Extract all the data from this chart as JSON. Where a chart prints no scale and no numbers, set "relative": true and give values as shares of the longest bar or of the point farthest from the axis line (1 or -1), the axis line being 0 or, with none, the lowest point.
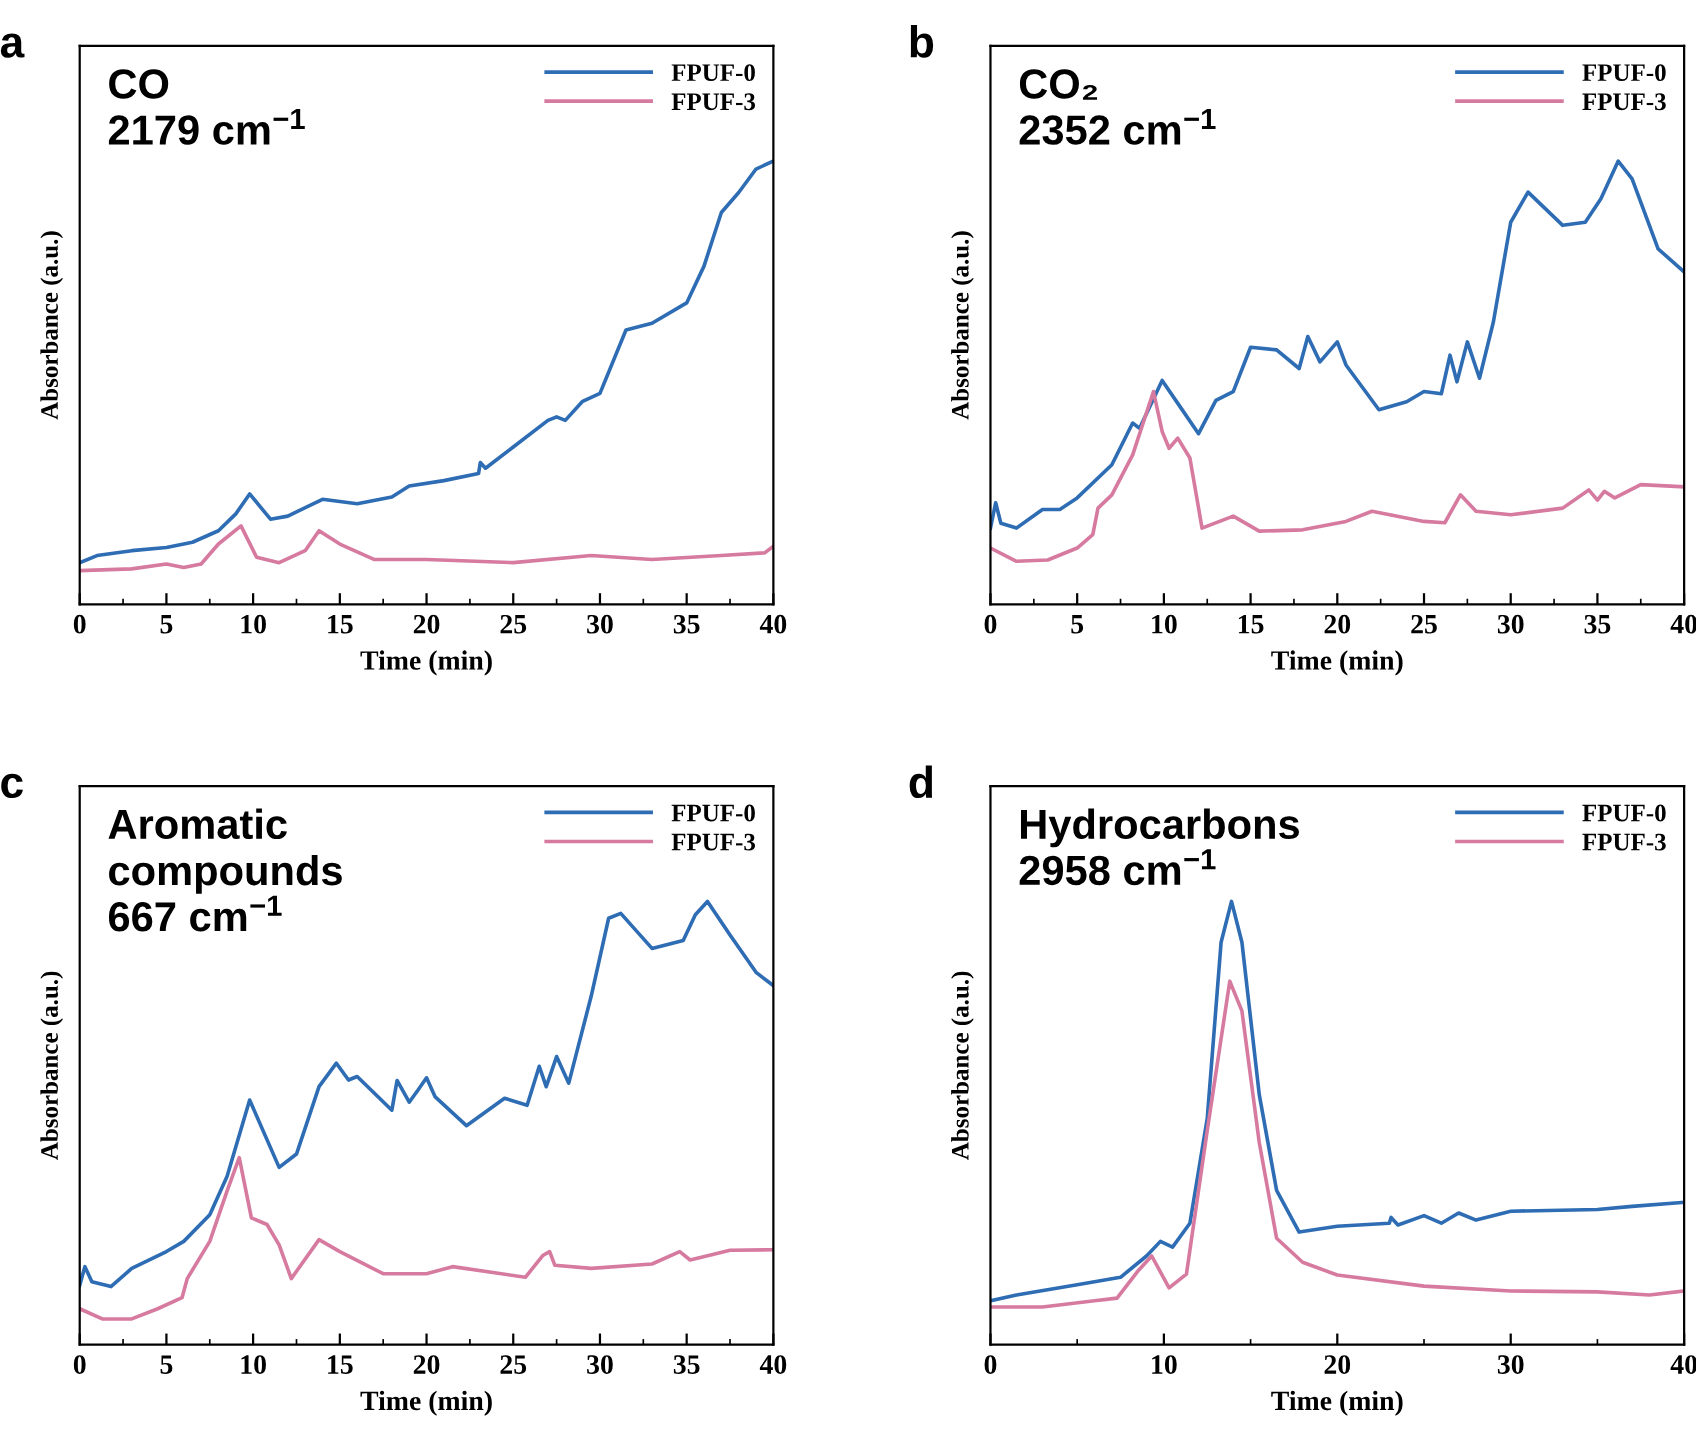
{
  "chart_data": [
    {
      "type": "line",
      "title": "CO\n2179 cm$^{−1}$",
      "xlabel": "Time (min)",
      "ylabel": "Absorbance (a.u.)",
      "annotations": [
        "a"
      ],
      "relative": true,
      "xlim": [
        0,
        40
      ],
      "xticks": [
        0,
        5,
        10,
        15,
        20,
        25,
        30,
        35,
        40
      ],
      "legend": "top right",
      "grid": false,
      "marker": "none",
      "line_style": "solid",
      "series": [
        {
          "name": "FPUF-0",
          "color": "#2e6db4",
          "x": [
            0,
            1,
            3,
            5,
            6.5,
            8,
            9,
            9.8,
            11,
            12,
            14,
            16,
            18,
            19,
            21,
            23,
            23.1,
            23.4,
            25,
            27,
            27.5,
            28,
            29,
            30,
            31.5,
            33,
            35,
            36,
            37,
            38,
            39,
            40
          ],
          "values": [
            0.094,
            0.11,
            0.121,
            0.128,
            0.14,
            0.166,
            0.204,
            0.249,
            0.192,
            0.199,
            0.237,
            0.227,
            0.242,
            0.267,
            0.279,
            0.295,
            0.32,
            0.307,
            0.355,
            0.415,
            0.423,
            0.415,
            0.458,
            0.476,
            0.619,
            0.634,
            0.68,
            0.763,
            0.884,
            0.929,
            0.982,
            1.0
          ]
        },
        {
          "name": "FPUF-3",
          "color": "#d67aa0",
          "x": [
            0,
            3,
            5,
            6,
            7,
            8,
            9.3,
            10.2,
            11.5,
            13,
            13.8,
            15,
            17,
            20,
            25,
            29.5,
            33,
            37,
            39.5,
            40
          ],
          "values": [
            0.076,
            0.08,
            0.091,
            0.083,
            0.091,
            0.136,
            0.177,
            0.106,
            0.094,
            0.121,
            0.166,
            0.136,
            0.101,
            0.101,
            0.094,
            0.11,
            0.101,
            0.11,
            0.116,
            0.131
          ]
        }
      ]
    },
    {
      "type": "line",
      "title": "CO₂\n2352 cm$^{−1}$",
      "xlabel": "Time (min)",
      "ylabel": "Absorbance (a.u.)",
      "annotations": [
        "b"
      ],
      "relative": true,
      "xlim": [
        0,
        40
      ],
      "xticks": [
        0,
        5,
        10,
        15,
        20,
        25,
        30,
        35,
        40
      ],
      "legend": "top right",
      "grid": false,
      "marker": "none",
      "line_style": "solid",
      "series": [
        {
          "name": "FPUF-0",
          "color": "#2e6db4",
          "x": [
            0,
            0.3,
            0.6,
            1.5,
            3,
            4,
            5,
            7,
            8.2,
            8.6,
            9.9,
            11,
            12,
            13,
            14,
            15,
            16.5,
            17.8,
            18.3,
            19,
            20,
            20.5,
            22.4,
            24,
            25,
            26,
            26.5,
            26.9,
            27.5,
            28.2,
            29,
            30,
            31,
            33,
            34.3,
            35.2,
            36.2,
            37,
            38.5,
            40
          ],
          "values": [
            0.172,
            0.229,
            0.183,
            0.172,
            0.214,
            0.214,
            0.24,
            0.315,
            0.409,
            0.397,
            0.505,
            0.442,
            0.385,
            0.46,
            0.48,
            0.58,
            0.574,
            0.532,
            0.604,
            0.547,
            0.592,
            0.54,
            0.439,
            0.457,
            0.48,
            0.475,
            0.562,
            0.502,
            0.592,
            0.51,
            0.637,
            0.862,
            0.93,
            0.855,
            0.862,
            0.915,
            1.0,
            0.96,
            0.802,
            0.75
          ]
        },
        {
          "name": "FPUF-3",
          "color": "#d67aa0",
          "x": [
            0,
            1.5,
            3.3,
            5,
            5.9,
            6.2,
            7,
            8.2,
            9.4,
            9.9,
            10.3,
            10.8,
            11.5,
            12.2,
            14,
            15.5,
            18,
            20.5,
            22,
            25,
            26.2,
            27.1,
            28,
            30,
            33,
            34.5,
            35,
            35.4,
            36,
            37.5,
            40
          ],
          "values": [
            0.127,
            0.097,
            0.1,
            0.127,
            0.157,
            0.217,
            0.247,
            0.337,
            0.48,
            0.39,
            0.352,
            0.375,
            0.33,
            0.172,
            0.199,
            0.165,
            0.168,
            0.187,
            0.21,
            0.187,
            0.184,
            0.247,
            0.21,
            0.202,
            0.217,
            0.258,
            0.235,
            0.255,
            0.24,
            0.27,
            0.265
          ]
        }
      ]
    },
    {
      "type": "line",
      "title": "Aromatic\ncompounds\n667 cm$^{−1}$",
      "xlabel": "Time (min)",
      "ylabel": "Absorbance (a.u.)",
      "annotations": [
        "c"
      ],
      "relative": true,
      "xlim": [
        0,
        40
      ],
      "xticks": [
        0,
        5,
        10,
        15,
        20,
        25,
        30,
        35,
        40
      ],
      "legend": "top right",
      "grid": false,
      "marker": "none",
      "line_style": "solid",
      "series": [
        {
          "name": "FPUF-0",
          "color": "#2e6db4",
          "x": [
            0,
            0.3,
            0.7,
            1.8,
            3,
            5,
            6,
            7.5,
            8.5,
            9.8,
            11.5,
            12.5,
            13.8,
            14.8,
            15.5,
            16,
            18,
            18.3,
            19,
            19.5,
            20,
            20.5,
            22.3,
            24.5,
            25.8,
            26.5,
            26.9,
            27.5,
            28.2,
            29.5,
            30.5,
            31.2,
            33,
            34.8,
            35.5,
            36.2,
            37.5,
            39,
            40
          ],
          "values": [
            0.134,
            0.176,
            0.142,
            0.131,
            0.172,
            0.21,
            0.233,
            0.293,
            0.38,
            0.552,
            0.4,
            0.43,
            0.582,
            0.635,
            0.597,
            0.605,
            0.529,
            0.596,
            0.547,
            0.574,
            0.602,
            0.559,
            0.494,
            0.556,
            0.54,
            0.628,
            0.582,
            0.65,
            0.59,
            0.787,
            0.962,
            0.973,
            0.894,
            0.912,
            0.97,
            1.0,
            0.924,
            0.84,
            0.81
          ]
        },
        {
          "name": "FPUF-3",
          "color": "#d67aa0",
          "x": [
            0,
            1.3,
            3,
            4.5,
            5.9,
            6.2,
            7.5,
            8.5,
            9.2,
            9.9,
            10.8,
            11.5,
            12.2,
            13.8,
            15,
            17.5,
            20,
            21.5,
            25.7,
            26.7,
            27.1,
            27.4,
            29.5,
            33,
            34.6,
            35.2,
            37.5,
            40
          ],
          "values": [
            0.081,
            0.058,
            0.058,
            0.081,
            0.106,
            0.149,
            0.233,
            0.347,
            0.422,
            0.286,
            0.271,
            0.225,
            0.149,
            0.237,
            0.21,
            0.16,
            0.16,
            0.176,
            0.152,
            0.201,
            0.21,
            0.179,
            0.172,
            0.182,
            0.21,
            0.191,
            0.213,
            0.214
          ]
        }
      ]
    },
    {
      "type": "line",
      "title": "Hydrocarbons\n2958 cm$^{−1}$",
      "xlabel": "Time (min)",
      "ylabel": "Absorbance (a.u.)",
      "annotations": [
        "d"
      ],
      "relative": true,
      "xlim": [
        0,
        40
      ],
      "xticks": [
        0,
        10,
        20,
        30,
        40
      ],
      "legend": "top right",
      "grid": false,
      "marker": "none",
      "line_style": "solid",
      "series": [
        {
          "name": "FPUF-0",
          "color": "#2e6db4",
          "x": [
            0,
            1.5,
            5,
            7.5,
            9,
            9.8,
            10.5,
            11.5,
            12.5,
            13.3,
            13.9,
            14.5,
            15.5,
            16.5,
            17.8,
            20,
            23,
            23.1,
            23.5,
            25,
            26,
            27,
            28,
            30,
            35,
            37,
            40
          ],
          "values": [
            0.099,
            0.112,
            0.135,
            0.152,
            0.2,
            0.233,
            0.22,
            0.274,
            0.51,
            0.908,
            1.0,
            0.908,
            0.564,
            0.348,
            0.254,
            0.267,
            0.274,
            0.287,
            0.27,
            0.291,
            0.274,
            0.297,
            0.281,
            0.301,
            0.305,
            0.312,
            0.321
          ]
        },
        {
          "name": "FPUF-3",
          "color": "#d67aa0",
          "x": [
            0,
            3,
            6,
            7.3,
            8.5,
            9.3,
            10.3,
            11.3,
            12.5,
            13.8,
            14.5,
            15.5,
            16.5,
            18,
            20,
            25,
            30,
            35,
            38,
            40
          ],
          "values": [
            0.085,
            0.085,
            0.099,
            0.105,
            0.166,
            0.2,
            0.128,
            0.159,
            0.483,
            0.82,
            0.753,
            0.456,
            0.24,
            0.186,
            0.157,
            0.132,
            0.121,
            0.119,
            0.112,
            0.121
          ]
        }
      ]
    }
  ]
}
